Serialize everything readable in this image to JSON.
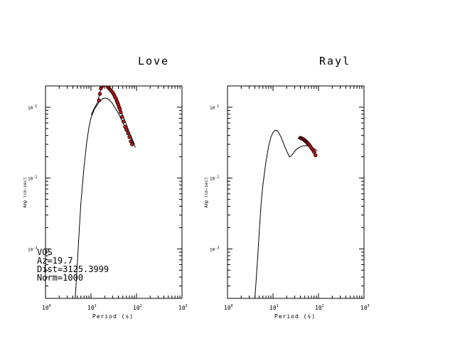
{
  "chart_data": [
    {
      "type": "line",
      "title": "Love",
      "xlabel": "Period (s)",
      "ylabel": "Amp (cm-sec)",
      "xscale": "log",
      "yscale": "log",
      "xlim": [
        1,
        1000
      ],
      "ylim": [
        0.0002,
        0.2
      ],
      "x_ticks": [
        "10",
        "10",
        "10",
        "10"
      ],
      "x_tick_exponents": [
        "0",
        "1",
        "2",
        "3"
      ],
      "y_ticks": [
        "10",
        "10",
        "10"
      ],
      "y_tick_exponents": [
        "-1",
        "-2",
        "-3"
      ],
      "series": [
        {
          "kind": "curve",
          "x": [
            4.5,
            5,
            5.5,
            6,
            7,
            8,
            9,
            10,
            12,
            15,
            18,
            20,
            22,
            25,
            30,
            40,
            50,
            60,
            70,
            80,
            95
          ],
          "y": [
            0.0002,
            0.0006,
            0.0018,
            0.0045,
            0.014,
            0.031,
            0.052,
            0.071,
            0.095,
            0.118,
            0.132,
            0.135,
            0.134,
            0.128,
            0.112,
            0.082,
            0.061,
            0.048,
            0.04,
            0.034,
            0.027
          ]
        },
        {
          "kind": "curve",
          "x": [
            10,
            12,
            14,
            16,
            18,
            20,
            22,
            25,
            30,
            35,
            40,
            45,
            50,
            55,
            60,
            70,
            80,
            90
          ],
          "y": [
            0.078,
            0.098,
            0.118,
            0.17,
            0.2,
            0.21,
            0.205,
            0.19,
            0.16,
            0.135,
            0.11,
            0.092,
            0.078,
            0.066,
            0.057,
            0.044,
            0.036,
            0.03
          ]
        },
        {
          "kind": "points",
          "x": [
            15,
            15.7,
            16.5,
            17.4,
            18.4,
            19.4,
            20.5,
            21.6,
            22.8,
            24,
            25.5,
            27,
            28.6,
            30.3,
            32,
            33.7,
            35.5,
            37,
            38.5,
            40,
            41.6,
            43.3,
            45,
            48,
            52,
            56,
            60,
            65,
            70,
            75,
            80
          ],
          "y": [
            0.125,
            0.155,
            0.185,
            0.198,
            0.205,
            0.208,
            0.21,
            0.207,
            0.2,
            0.19,
            0.183,
            0.175,
            0.167,
            0.16,
            0.15,
            0.14,
            0.132,
            0.122,
            0.115,
            0.108,
            0.1,
            0.094,
            0.085,
            0.073,
            0.063,
            0.053,
            0.048,
            0.043,
            0.038,
            0.033,
            0.03
          ]
        }
      ],
      "annotations": [
        "VOS",
        "Az=19.7",
        "Dist=3125.3999",
        "Norm=1000"
      ]
    },
    {
      "type": "line",
      "title": "Rayl",
      "xlabel": "Period (s)",
      "ylabel": "Amp (cm-sec)",
      "xscale": "log",
      "yscale": "log",
      "xlim": [
        1,
        1000
      ],
      "ylim": [
        0.0002,
        0.2
      ],
      "x_ticks": [
        "10",
        "10",
        "10",
        "10"
      ],
      "x_tick_exponents": [
        "0",
        "1",
        "2",
        "3"
      ],
      "y_ticks": [
        "10",
        "10",
        "10"
      ],
      "y_tick_exponents": [
        "-1",
        "-2",
        "-3"
      ],
      "series": [
        {
          "kind": "curve",
          "x": [
            4,
            4.5,
            5,
            5.5,
            6,
            7,
            8,
            9,
            10,
            11,
            12,
            13,
            15,
            18,
            20,
            23,
            25,
            28,
            32,
            38,
            45,
            55,
            65,
            80,
            95
          ],
          "y": [
            0.0002,
            0.0006,
            0.0018,
            0.0045,
            0.008,
            0.017,
            0.028,
            0.038,
            0.044,
            0.047,
            0.047,
            0.045,
            0.038,
            0.028,
            0.024,
            0.02,
            0.0205,
            0.0225,
            0.0252,
            0.0273,
            0.0285,
            0.0287,
            0.028,
            0.026,
            0.0243
          ]
        },
        {
          "kind": "curve",
          "x": [
            35,
            40,
            45,
            50,
            55,
            60,
            65,
            70,
            75,
            80,
            90
          ],
          "y": [
            0.037,
            0.035,
            0.034,
            0.033,
            0.032,
            0.031,
            0.0295,
            0.028,
            0.0265,
            0.025,
            0.023
          ]
        },
        {
          "kind": "points",
          "x": [
            40,
            42,
            44,
            46,
            48,
            50,
            52,
            54,
            56,
            58,
            60,
            63,
            66,
            70,
            75,
            80,
            86
          ],
          "y": [
            0.037,
            0.0365,
            0.036,
            0.0355,
            0.0348,
            0.034,
            0.0333,
            0.0325,
            0.0318,
            0.031,
            0.0302,
            0.0293,
            0.028,
            0.0265,
            0.025,
            0.0233,
            0.021
          ]
        }
      ],
      "annotations": []
    }
  ]
}
